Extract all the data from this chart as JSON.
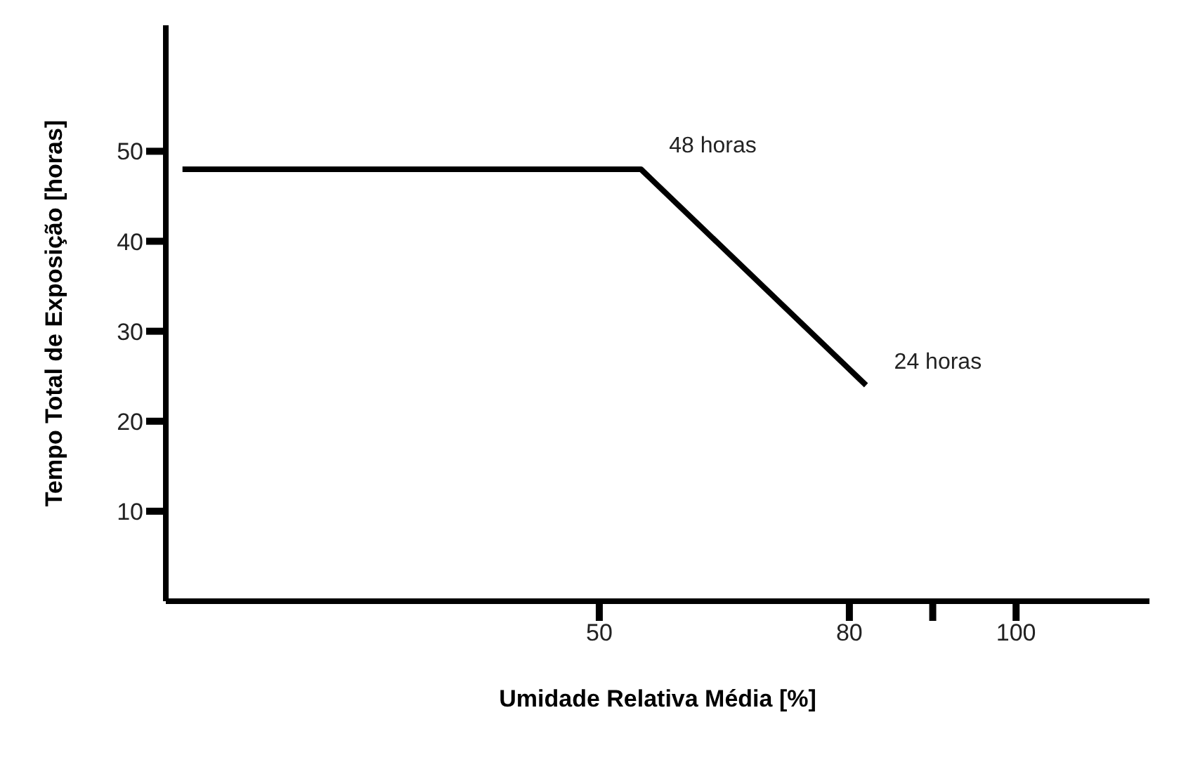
{
  "chart_data": {
    "type": "line",
    "xlabel": "Umidade Relativa Média [%]",
    "ylabel": "Tempo Total de Exposição [horas]",
    "x": [
      0,
      55,
      82
    ],
    "series": [
      {
        "color": "#000000",
        "values": [
          48,
          48,
          24
        ]
      }
    ],
    "xlim": [
      -2,
      116
    ],
    "xticks": [
      50,
      80,
      {
        "value": 90,
        "label": null
      },
      100
    ],
    "ylim": [
      0,
      64
    ],
    "yticks": [
      10,
      20,
      30,
      40,
      50
    ],
    "annotations": [
      {
        "text": "48 horas",
        "x": 55,
        "y": 48
      },
      {
        "text": "24 horas",
        "x": 82,
        "y": 24
      }
    ],
    "grid": false,
    "legend": false,
    "marker": "none",
    "line_style": "solid"
  }
}
